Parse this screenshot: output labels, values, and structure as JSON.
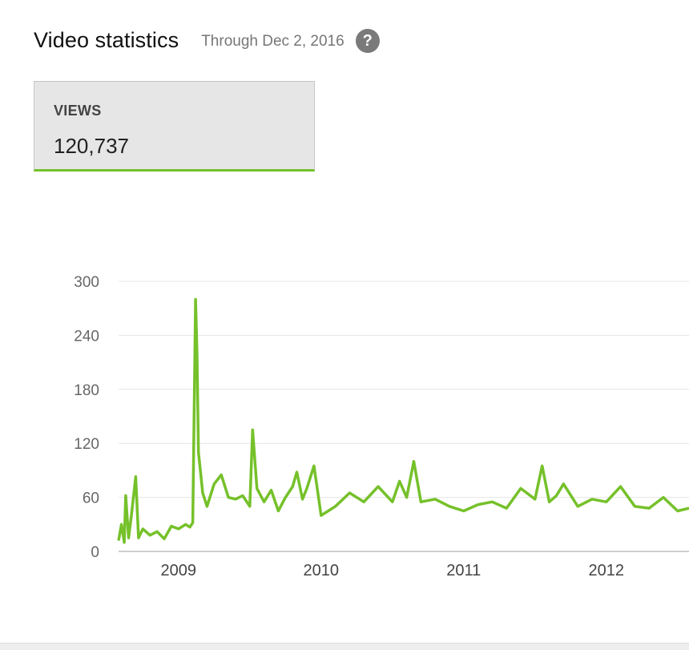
{
  "header": {
    "title": "Video statistics",
    "through": "Through Dec 2, 2016",
    "help_glyph": "?"
  },
  "metric": {
    "label": "VIEWS",
    "value": "120,737",
    "accent_color": "#75c12a"
  },
  "chart_data": {
    "type": "line",
    "title": "",
    "xlabel": "",
    "ylabel": "",
    "x_range": [
      2008.58,
      2012.58
    ],
    "ylim": [
      0,
      300
    ],
    "y_ticks": [
      0,
      60,
      120,
      180,
      240,
      300
    ],
    "x_ticks": [
      2009,
      2010,
      2011,
      2012
    ],
    "grid": true,
    "legend": "none",
    "color": "#75c12a",
    "series": [
      {
        "x": [
          2008.58,
          2008.6,
          2008.62,
          2008.63,
          2008.65,
          2008.67,
          2008.7,
          2008.72,
          2008.75,
          2008.8,
          2008.85,
          2008.9,
          2008.95,
          2009.0,
          2009.05,
          2009.08,
          2009.1,
          2009.12,
          2009.13,
          2009.14,
          2009.15,
          2009.17,
          2009.2,
          2009.25,
          2009.3,
          2009.35,
          2009.4,
          2009.45,
          2009.5,
          2009.52,
          2009.55,
          2009.6,
          2009.65,
          2009.7,
          2009.75,
          2009.8,
          2009.83,
          2009.87,
          2009.9,
          2009.95,
          2010.0,
          2010.05,
          2010.1,
          2010.2,
          2010.3,
          2010.4,
          2010.5,
          2010.55,
          2010.6,
          2010.65,
          2010.7,
          2010.8,
          2010.9,
          2011.0,
          2011.1,
          2011.2,
          2011.3,
          2011.4,
          2011.5,
          2011.55,
          2011.6,
          2011.65,
          2011.7,
          2011.8,
          2011.9,
          2012.0,
          2012.1,
          2012.2,
          2012.3,
          2012.4,
          2012.5,
          2012.58
        ],
        "y": [
          12,
          30,
          10,
          62,
          15,
          40,
          83,
          15,
          25,
          18,
          22,
          14,
          28,
          25,
          30,
          27,
          32,
          280,
          220,
          110,
          95,
          65,
          50,
          75,
          85,
          60,
          58,
          62,
          50,
          135,
          70,
          55,
          68,
          45,
          60,
          72,
          88,
          58,
          70,
          95,
          40,
          45,
          50,
          65,
          55,
          72,
          55,
          78,
          60,
          100,
          55,
          58,
          50,
          45,
          52,
          55,
          48,
          70,
          58,
          95,
          55,
          62,
          75,
          50,
          58,
          55,
          72,
          50,
          48,
          60,
          45,
          48
        ]
      }
    ]
  }
}
